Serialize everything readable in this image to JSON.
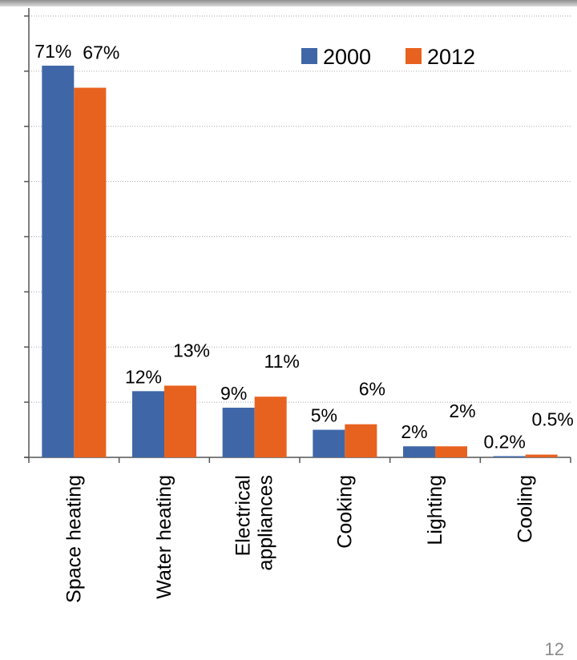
{
  "chart_data": {
    "type": "bar",
    "title": "",
    "xlabel": "",
    "ylabel": "",
    "categories": [
      "Space heating",
      "Water heating",
      "Electrical appliances",
      "Cooking",
      "Lighting",
      "Cooling"
    ],
    "category_lines": [
      [
        "Space heating"
      ],
      [
        "Water heating"
      ],
      [
        "Electrical",
        "appliances"
      ],
      [
        "Cooking"
      ],
      [
        "Lighting"
      ],
      [
        "Cooling"
      ]
    ],
    "series": [
      {
        "name": "2000",
        "color": "#3f67a8",
        "values": [
          71,
          12,
          9,
          5,
          2,
          0.2
        ],
        "labels": [
          "71%",
          "12%",
          "9%",
          "5%",
          "2%",
          "0.2%"
        ]
      },
      {
        "name": "2012",
        "color": "#e8621f",
        "values": [
          67,
          13,
          11,
          6,
          2,
          0.5
        ],
        "labels": [
          "67%",
          "13%",
          "11%",
          "6%",
          "2%",
          "0.5%"
        ]
      }
    ],
    "ylim": [
      0,
      80
    ],
    "grid": true,
    "legend": "top-right",
    "show_y_tick_labels": false
  },
  "page": {
    "page_number": "12"
  }
}
